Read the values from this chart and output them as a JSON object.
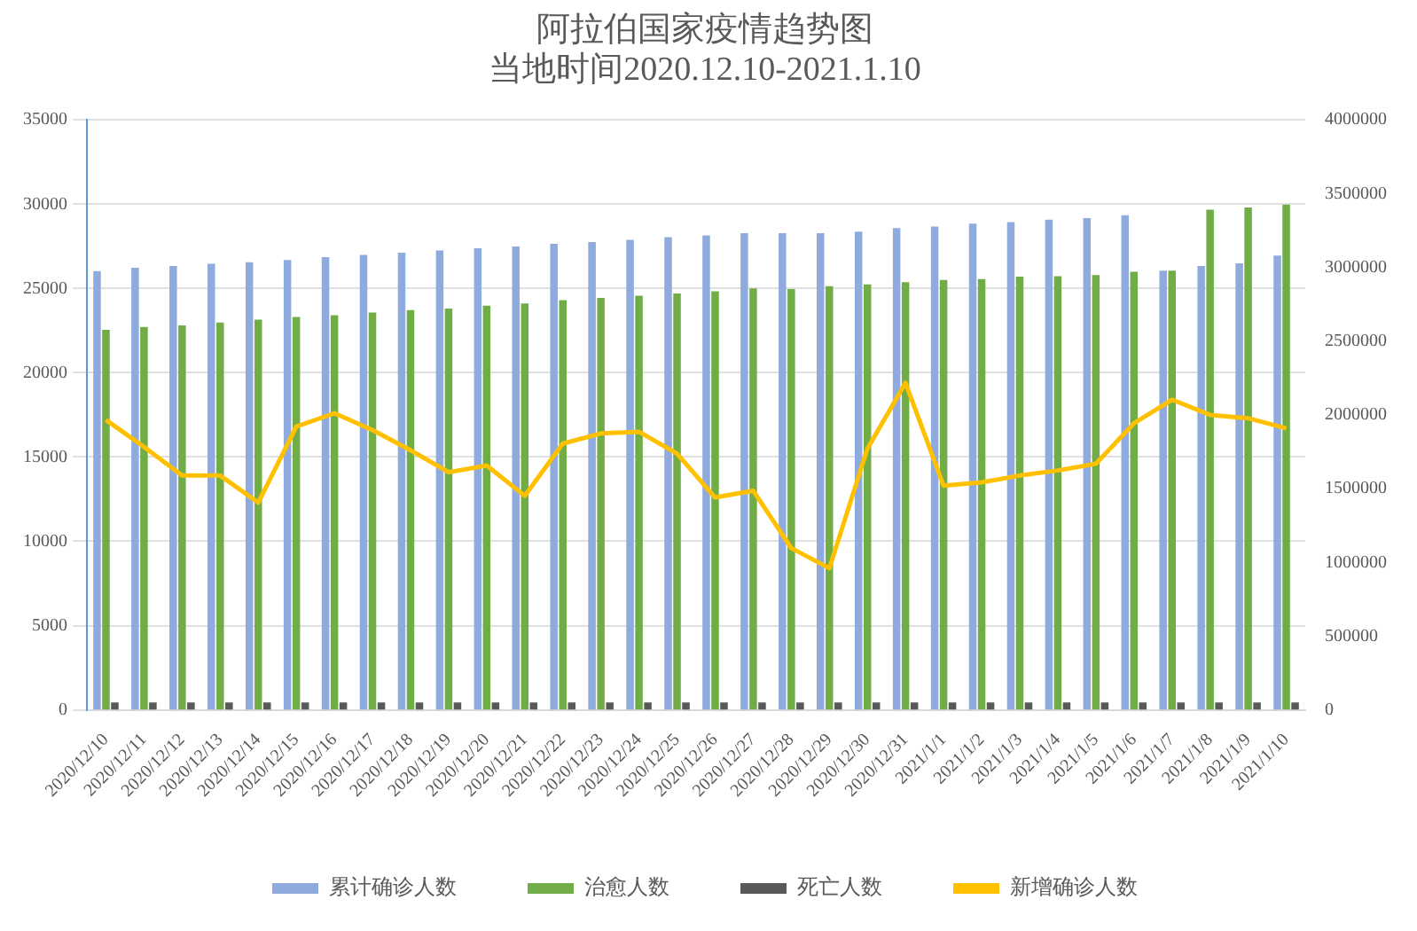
{
  "chart_data": {
    "type": "bar",
    "title": [
      "阿拉伯国家疫情趋势图",
      "当地时间2020.12.10-2021.1.10"
    ],
    "categories": [
      "2020/12/10",
      "2020/12/11",
      "2020/12/12",
      "2020/12/13",
      "2020/12/14",
      "2020/12/15",
      "2020/12/16",
      "2020/12/17",
      "2020/12/18",
      "2020/12/19",
      "2020/12/20",
      "2020/12/21",
      "2020/12/22",
      "2020/12/23",
      "2020/12/24",
      "2020/12/25",
      "2020/12/26",
      "2020/12/27",
      "2020/12/28",
      "2020/12/29",
      "2020/12/30",
      "2020/12/31",
      "2021/1/1",
      "2021/1/2",
      "2021/1/3",
      "2021/1/4",
      "2021/1/5",
      "2021/1/6",
      "2021/1/7",
      "2021/1/8",
      "2021/1/9",
      "2021/1/10"
    ],
    "series": [
      {
        "name": "累计确诊人数",
        "color": "#8faadc",
        "axis": "y2",
        "values": [
          2975000,
          2997000,
          3009000,
          3024000,
          3035000,
          3050000,
          3069000,
          3084000,
          3099000,
          3114000,
          3130000,
          3141000,
          3160000,
          3171000,
          3186000,
          3205000,
          3217000,
          3232000,
          3232000,
          3232000,
          3243000,
          3266000,
          3277000,
          3296000,
          3307000,
          3323000,
          3334000,
          3353000,
          2978000,
          3009000,
          3027000,
          3080000
        ]
      },
      {
        "name": "治愈人数",
        "color": "#70ad47",
        "axis": "y2",
        "values": [
          2577000,
          2596000,
          2607000,
          2626000,
          2645000,
          2664000,
          2676000,
          2694000,
          2710000,
          2721000,
          2740000,
          2755000,
          2778000,
          2793000,
          2808000,
          2823000,
          2838000,
          2857000,
          2853000,
          2872000,
          2884000,
          2899000,
          2914000,
          2921000,
          2937000,
          2940000,
          2948000,
          2971000,
          2978000,
          3391000,
          3406000,
          3425000
        ]
      },
      {
        "name": "死亡人数",
        "color": "#595959",
        "axis": "y2",
        "values": [
          50000,
          50000,
          50000,
          50000,
          50000,
          50000,
          50000,
          50000,
          50000,
          50000,
          50000,
          50000,
          50000,
          50000,
          50000,
          50000,
          50000,
          50000,
          50000,
          50000,
          50000,
          50000,
          50000,
          50000,
          50000,
          50000,
          50000,
          50000,
          50000,
          50000,
          50000,
          50000
        ]
      },
      {
        "name": "新增确诊人数",
        "color": "#ffc000",
        "type": "line",
        "axis": "y",
        "values": [
          17200,
          15600,
          13900,
          13900,
          12300,
          16800,
          17600,
          16600,
          15400,
          14100,
          14500,
          12700,
          15800,
          16400,
          16500,
          15200,
          12600,
          13000,
          9600,
          8400,
          15500,
          19400,
          13300,
          13500,
          13900,
          14200,
          14600,
          17000,
          18400,
          17500,
          17300,
          16700
        ]
      }
    ],
    "ylim": [
      0,
      35000
    ],
    "yticks": [
      0,
      5000,
      10000,
      15000,
      20000,
      25000,
      30000,
      35000
    ],
    "y2lim": [
      0,
      4000000
    ],
    "y2ticks": [
      0,
      500000,
      1000000,
      1500000,
      2000000,
      2500000,
      3000000,
      3500000,
      4000000
    ],
    "grid": "y",
    "legend": "bottom",
    "marker": "none"
  }
}
